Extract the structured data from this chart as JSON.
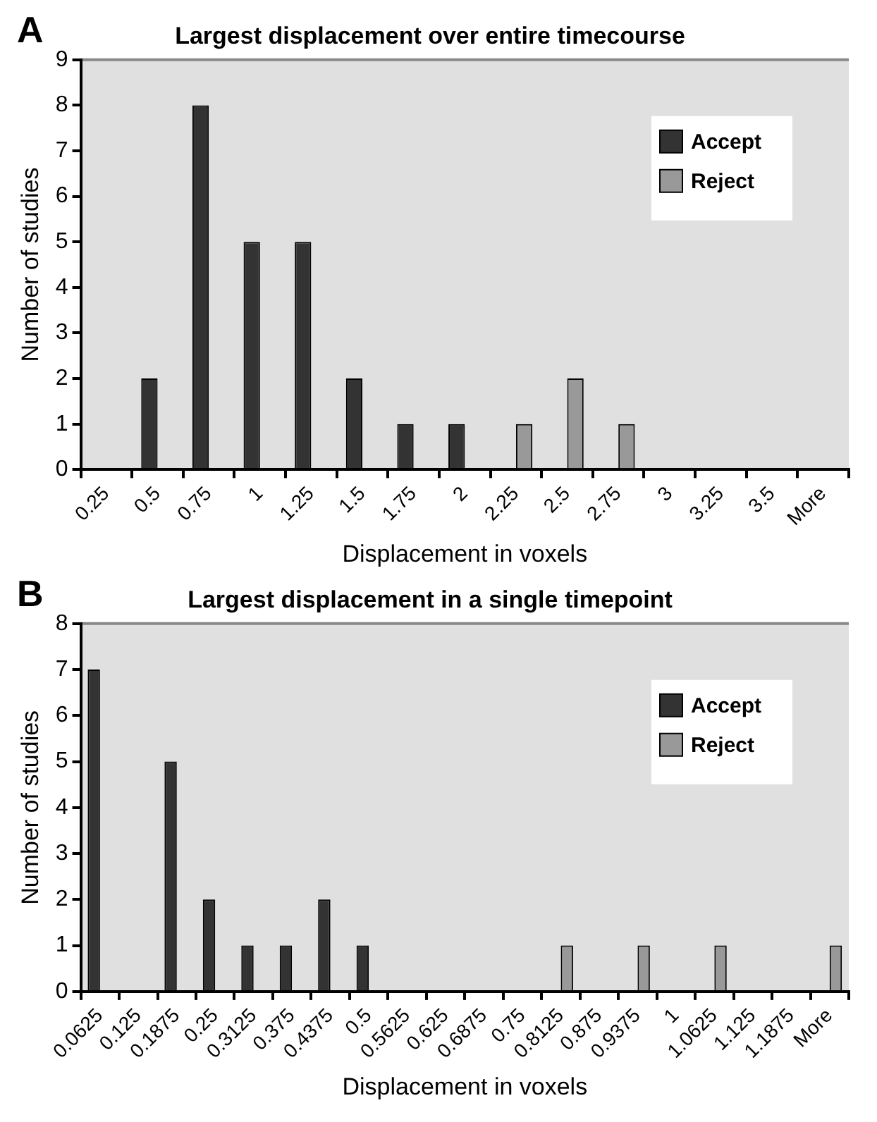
{
  "chart_data": [
    {
      "type": "bar",
      "title": "Largest displacement over entire timecourse",
      "xlabel": "Displacement in voxels",
      "ylabel": "Number of studies",
      "annotations": [
        "A"
      ],
      "categories": [
        "0.25",
        "0.5",
        "0.75",
        "1",
        "1.25",
        "1.5",
        "1.75",
        "2",
        "2.25",
        "2.5",
        "2.75",
        "3",
        "3.25",
        "3.5",
        "More"
      ],
      "series": [
        {
          "name": "Accept",
          "color": "#333333",
          "values": [
            0,
            2,
            8,
            5,
            5,
            2,
            1,
            1,
            0,
            0,
            0,
            0,
            0,
            0,
            0
          ]
        },
        {
          "name": "Reject",
          "color": "#999999",
          "values": [
            0,
            0,
            0,
            0,
            0,
            0,
            0,
            0,
            1,
            2,
            1,
            0,
            0,
            0,
            0
          ]
        }
      ],
      "ylim": [
        0,
        9
      ],
      "yticks": [
        0,
        1,
        2,
        3,
        4,
        5,
        6,
        7,
        8,
        9
      ],
      "legend": "top right"
    },
    {
      "type": "bar",
      "title": "Largest displacement in a single timepoint",
      "xlabel": "Displacement in voxels",
      "ylabel": "Number of studies",
      "annotations": [
        "B"
      ],
      "categories": [
        "0.0625",
        "0.125",
        "0.1875",
        "0.25",
        "0.3125",
        "0.375",
        "0.4375",
        "0.5",
        "0.5625",
        "0.625",
        "0.6875",
        "0.75",
        "0.8125",
        "0.875",
        "0.9375",
        "1",
        "1.0625",
        "1.125",
        "1.1875",
        "More"
      ],
      "series": [
        {
          "name": "Accept",
          "color": "#333333",
          "values": [
            7,
            0,
            5,
            2,
            1,
            1,
            2,
            1,
            0,
            0,
            0,
            0,
            0,
            0,
            0,
            0,
            0,
            0,
            0,
            0
          ]
        },
        {
          "name": "Reject",
          "color": "#999999",
          "values": [
            0,
            0,
            0,
            0,
            0,
            0,
            0,
            0,
            0,
            0,
            0,
            0,
            1,
            0,
            1,
            0,
            1,
            0,
            0,
            1
          ]
        }
      ],
      "ylim": [
        0,
        8
      ],
      "yticks": [
        0,
        1,
        2,
        3,
        4,
        5,
        6,
        7,
        8
      ],
      "legend": "top right"
    }
  ]
}
